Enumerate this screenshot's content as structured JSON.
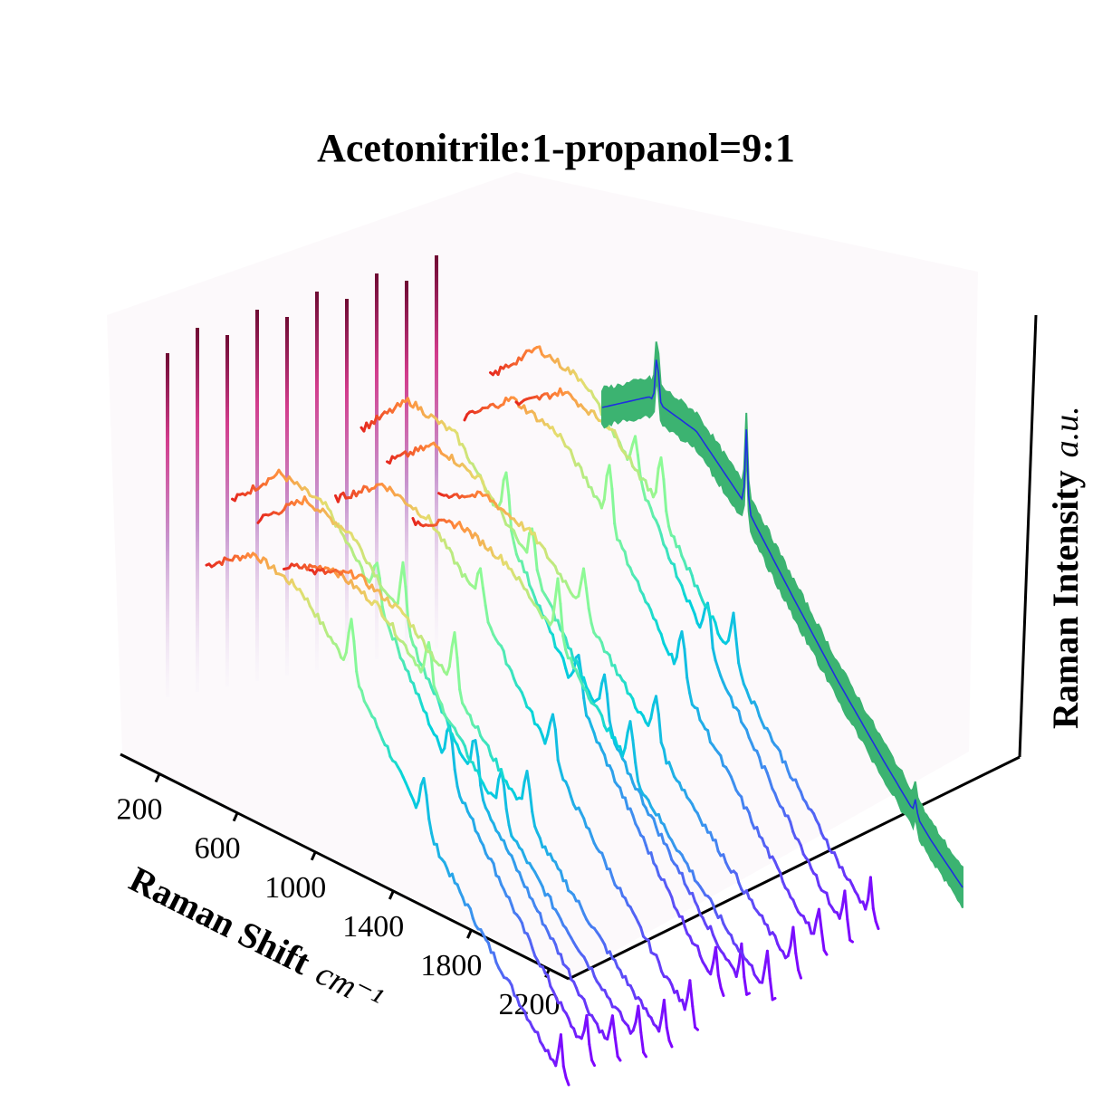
{
  "chart_data": {
    "type": "line",
    "title": "Acetonitrile:1-propanol=9:1",
    "xlabel": "Raman Shift",
    "xlabel_unit": "cm⁻¹",
    "zlabel": "Raman Intensity",
    "zlabel_unit": "a.u.",
    "x_ticks": [
      "200",
      "600",
      "1000",
      "1400",
      "1800",
      "2200"
    ],
    "xlim": [
      0,
      2300
    ],
    "grid": false,
    "n_spectra": 13,
    "peak_positions": [
      920,
      1380,
      2250
    ],
    "baseline_profile": {
      "x": [
        0,
        300,
        600,
        900,
        1200,
        1500,
        1800,
        2100,
        2300
      ],
      "y": [
        0.62,
        0.8,
        0.83,
        0.74,
        0.58,
        0.43,
        0.3,
        0.18,
        0.12
      ]
    },
    "mean_trace": {
      "fill_color": "#3cb371",
      "line_color": "#1f2fe0",
      "band_halfwidth": 0.06
    },
    "colormap": "rainbow"
  }
}
